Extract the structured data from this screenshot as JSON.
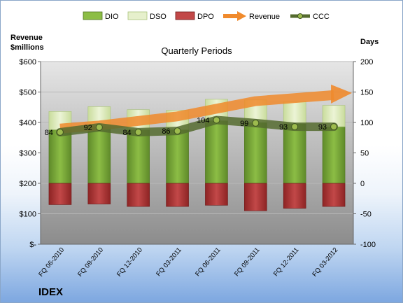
{
  "chart_data": {
    "type": "bar",
    "title": "Quarterly Periods",
    "company": "IDEX",
    "left_axis_label": "Revenue\n$millions",
    "right_axis_label": "Days",
    "categories": [
      "FQ 06-2010",
      "FQ 09-2010",
      "FQ 12-2010",
      "FQ 03-2011",
      "FQ 06-2011",
      "FQ 09-2011",
      "FQ 12-2011",
      "FQ 03-2012"
    ],
    "y_left": {
      "min": 0,
      "max": 600,
      "ticks": [
        "$-",
        "$100",
        "$200",
        "$300",
        "$400",
        "$500",
        "$600"
      ]
    },
    "y_right": {
      "min": -100,
      "max": 200,
      "ticks": [
        "-100",
        "-50",
        "0",
        "50",
        "100",
        "150",
        "200"
      ]
    },
    "series": [
      {
        "name": "DIO",
        "axis": "right",
        "kind": "stacked-bar",
        "values": [
          88,
          93,
          88,
          88,
          103,
          100,
          98,
          93
        ]
      },
      {
        "name": "DSO",
        "axis": "right",
        "kind": "stacked-bar",
        "values": [
          30,
          33,
          33,
          32,
          35,
          37,
          36,
          35
        ]
      },
      {
        "name": "DPO",
        "axis": "right",
        "kind": "stacked-bar",
        "values": [
          -35,
          -34,
          -38,
          -38,
          -36,
          -45,
          -41,
          -38
        ]
      },
      {
        "name": "Revenue",
        "axis": "left",
        "kind": "arrow-line",
        "values": [
          380,
          390,
          405,
          420,
          445,
          470,
          480,
          490
        ]
      },
      {
        "name": "CCC",
        "axis": "right",
        "kind": "line",
        "values": [
          84,
          92,
          84,
          86,
          104,
          99,
          93,
          93
        ]
      }
    ],
    "data_labels": [
      "84",
      "92",
      "84",
      "86",
      "104",
      "99",
      "93",
      "93"
    ],
    "colors": {
      "DIO": "#7fa83a",
      "DSO": "#d8e8b0",
      "DPO": "#b23a3a",
      "Revenue": "#f08a2c",
      "CCC": "#556b2f"
    }
  }
}
